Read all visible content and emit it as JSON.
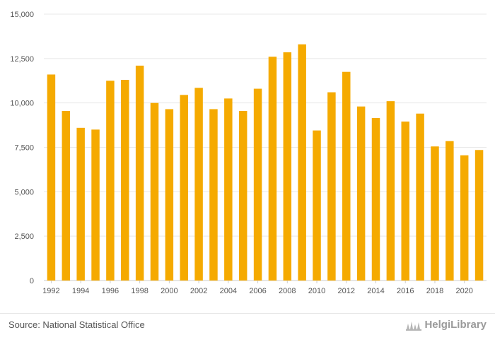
{
  "chart_data": {
    "type": "bar",
    "categories": [
      "1992",
      "1993",
      "1994",
      "1995",
      "1996",
      "1997",
      "1998",
      "1999",
      "2000",
      "2001",
      "2002",
      "2003",
      "2004",
      "2005",
      "2006",
      "2007",
      "2008",
      "2009",
      "2010",
      "2011",
      "2012",
      "2013",
      "2014",
      "2015",
      "2016",
      "2017",
      "2018",
      "2019",
      "2020",
      "2021"
    ],
    "x_tick_labels": [
      "1992",
      "1994",
      "1996",
      "1998",
      "2000",
      "2002",
      "2004",
      "2006",
      "2008",
      "2010",
      "2012",
      "2014",
      "2016",
      "2018",
      "2020"
    ],
    "values": [
      11600,
      9550,
      8600,
      8500,
      11250,
      11300,
      12100,
      10000,
      9650,
      10450,
      10850,
      9650,
      10250,
      9550,
      10800,
      12600,
      12850,
      13300,
      8450,
      10600,
      11750,
      9800,
      9150,
      10100,
      8950,
      9400,
      7550,
      7850,
      7050,
      7350
    ],
    "ylim": [
      0,
      15000
    ],
    "y_ticks": [
      0,
      2500,
      5000,
      7500,
      10000,
      12500,
      15000
    ],
    "y_tick_labels": [
      "0",
      "2,500",
      "5,000",
      "7,500",
      "10,000",
      "12,500",
      "15,000"
    ],
    "bar_color": "#f5aa00",
    "grid": true,
    "title": "",
    "xlabel": "",
    "ylabel": ""
  },
  "footer": {
    "source": "Source: National Statistical Office",
    "brand": "HelgiLibrary",
    "brand_icon": "helgi-logo-icon"
  }
}
